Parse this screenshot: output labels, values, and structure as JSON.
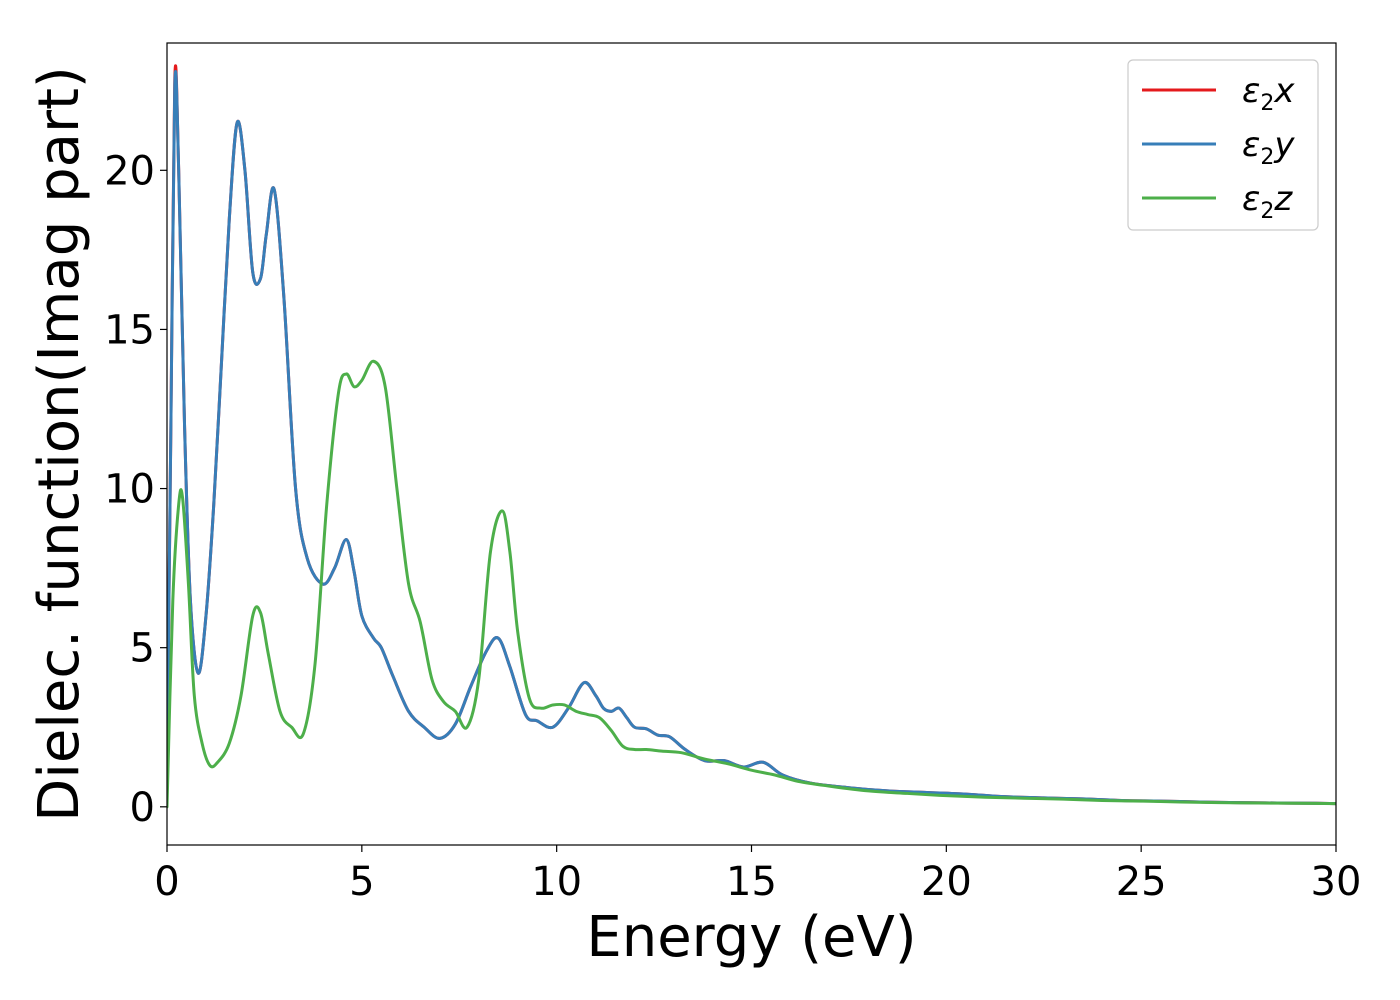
{
  "chart_data": {
    "type": "line",
    "xlabel": "Energy (eV)",
    "ylabel": "Dielec. function(Imag part)",
    "xlim": [
      0,
      30
    ],
    "ylim": [
      -1.2,
      24
    ],
    "xticks": [
      0,
      5,
      10,
      15,
      20,
      25,
      30
    ],
    "yticks": [
      0,
      5,
      10,
      15,
      20
    ],
    "grid": false,
    "legend_position": "top-right",
    "series": [
      {
        "name": "ε2x",
        "legend": {
          "base": "ε",
          "sub": "2",
          "axis": "x"
        },
        "color": "#e41a1c",
        "x": [
          0,
          0.1,
          0.2,
          0.3,
          0.45,
          0.6,
          0.8,
          1.0,
          1.2,
          1.4,
          1.6,
          1.8,
          2.0,
          2.2,
          2.4,
          2.55,
          2.75,
          3.0,
          3.3,
          3.6,
          4.0,
          4.3,
          4.6,
          4.8,
          5.0,
          5.3,
          5.5,
          5.8,
          6.2,
          6.6,
          7.0,
          7.4,
          7.8,
          8.2,
          8.5,
          8.8,
          9.2,
          9.5,
          9.9,
          10.3,
          10.7,
          11.0,
          11.2,
          11.4,
          11.6,
          11.8,
          12.0,
          12.3,
          12.6,
          12.9,
          13.3,
          13.8,
          14.3,
          14.8,
          15.3,
          15.8,
          16.5,
          17.5,
          18.5,
          19.5,
          20.5,
          21.5,
          22.5,
          23.5,
          24.5,
          25.5,
          26.5,
          27.5,
          28.5,
          29.5,
          30
        ],
        "y": [
          1,
          12,
          22.9,
          20,
          12,
          6.5,
          4.2,
          6,
          9.5,
          14,
          18.5,
          21.5,
          20,
          16.8,
          16.6,
          18,
          19.4,
          16,
          10,
          7.8,
          7,
          7.5,
          8.4,
          7.4,
          6,
          5.3,
          5.0,
          4.1,
          3.0,
          2.5,
          2.15,
          2.6,
          3.8,
          4.9,
          5.3,
          4.4,
          2.9,
          2.7,
          2.5,
          3.1,
          3.9,
          3.5,
          3.1,
          3.0,
          3.1,
          2.8,
          2.5,
          2.45,
          2.25,
          2.2,
          1.8,
          1.45,
          1.45,
          1.25,
          1.4,
          1.0,
          0.75,
          0.6,
          0.5,
          0.45,
          0.4,
          0.32,
          0.28,
          0.25,
          0.2,
          0.18,
          0.15,
          0.13,
          0.12,
          0.11,
          0.1
        ]
      },
      {
        "name": "ε2y",
        "legend": {
          "base": "ε",
          "sub": "2",
          "axis": "y"
        },
        "color": "#377eb8",
        "x": [
          0,
          0.1,
          0.2,
          0.3,
          0.45,
          0.6,
          0.8,
          1.0,
          1.2,
          1.4,
          1.6,
          1.8,
          2.0,
          2.2,
          2.4,
          2.55,
          2.75,
          3.0,
          3.3,
          3.6,
          4.0,
          4.3,
          4.6,
          4.8,
          5.0,
          5.3,
          5.5,
          5.8,
          6.2,
          6.6,
          7.0,
          7.4,
          7.8,
          8.2,
          8.5,
          8.8,
          9.2,
          9.5,
          9.9,
          10.3,
          10.7,
          11.0,
          11.2,
          11.4,
          11.6,
          11.8,
          12.0,
          12.3,
          12.6,
          12.9,
          13.3,
          13.8,
          14.3,
          14.8,
          15.3,
          15.8,
          16.5,
          17.5,
          18.5,
          19.5,
          20.5,
          21.5,
          22.5,
          23.5,
          24.5,
          25.5,
          26.5,
          27.5,
          28.5,
          29.5,
          30
        ],
        "y": [
          1,
          12,
          22.7,
          20,
          12,
          6.5,
          4.2,
          6,
          9.5,
          14,
          18.5,
          21.5,
          20,
          16.8,
          16.6,
          18,
          19.4,
          16,
          10,
          7.8,
          7,
          7.5,
          8.4,
          7.4,
          6,
          5.3,
          5.0,
          4.1,
          3.0,
          2.5,
          2.15,
          2.6,
          3.8,
          4.9,
          5.3,
          4.4,
          2.9,
          2.7,
          2.5,
          3.1,
          3.9,
          3.5,
          3.1,
          3.0,
          3.1,
          2.8,
          2.5,
          2.45,
          2.25,
          2.2,
          1.8,
          1.45,
          1.45,
          1.25,
          1.4,
          1.0,
          0.75,
          0.6,
          0.5,
          0.45,
          0.4,
          0.32,
          0.28,
          0.25,
          0.2,
          0.18,
          0.15,
          0.13,
          0.12,
          0.11,
          0.1
        ]
      },
      {
        "name": "ε2z",
        "legend": {
          "base": "ε",
          "sub": "2",
          "axis": "z"
        },
        "color": "#4daf4a",
        "x": [
          0,
          0.15,
          0.3,
          0.4,
          0.55,
          0.7,
          0.9,
          1.1,
          1.3,
          1.6,
          1.9,
          2.2,
          2.4,
          2.6,
          2.9,
          3.2,
          3.5,
          3.8,
          4.1,
          4.4,
          4.6,
          4.8,
          5.0,
          5.3,
          5.6,
          5.9,
          6.2,
          6.5,
          6.8,
          7.1,
          7.4,
          7.7,
          8.0,
          8.3,
          8.6,
          8.8,
          9.0,
          9.3,
          9.6,
          9.9,
          10.2,
          10.5,
          10.8,
          11.1,
          11.4,
          11.7,
          12.0,
          12.3,
          12.7,
          13.2,
          13.8,
          14.4,
          15.0,
          15.6,
          16.2,
          17.0,
          18.0,
          19.0,
          20.0,
          21.0,
          22.0,
          23.0,
          24.0,
          25.0,
          26.0,
          27.0,
          28.0,
          29.0,
          30
        ],
        "y": [
          0,
          6.5,
          9.5,
          9.7,
          7.0,
          3.5,
          2.0,
          1.3,
          1.4,
          2.0,
          3.5,
          6.0,
          6.1,
          4.8,
          3.0,
          2.5,
          2.3,
          4.5,
          9.5,
          13.0,
          13.6,
          13.2,
          13.4,
          14.0,
          13.2,
          10.0,
          7.0,
          5.8,
          4.0,
          3.3,
          3.0,
          2.5,
          4.0,
          8.0,
          9.3,
          8.0,
          5.5,
          3.4,
          3.1,
          3.2,
          3.2,
          3.0,
          2.9,
          2.8,
          2.4,
          1.9,
          1.8,
          1.8,
          1.75,
          1.7,
          1.5,
          1.35,
          1.15,
          1.0,
          0.8,
          0.65,
          0.5,
          0.42,
          0.35,
          0.3,
          0.27,
          0.24,
          0.2,
          0.18,
          0.15,
          0.13,
          0.12,
          0.11,
          0.1
        ]
      }
    ]
  }
}
